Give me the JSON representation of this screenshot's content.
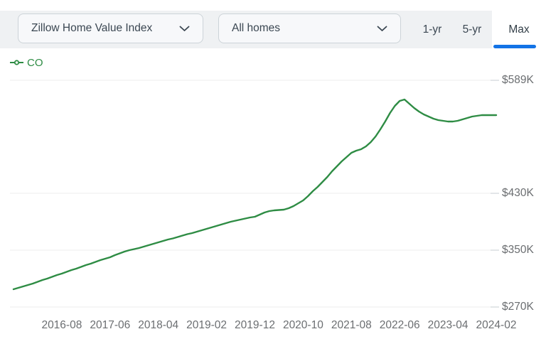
{
  "toolbar": {
    "metric_dropdown": {
      "value": "Zillow Home Value Index"
    },
    "home_type_dropdown": {
      "value": "All homes"
    },
    "ranges": [
      {
        "label": "1-yr",
        "selected": false
      },
      {
        "label": "5-yr",
        "selected": false
      },
      {
        "label": "Max",
        "selected": true
      }
    ]
  },
  "legend": {
    "series_label": "CO"
  },
  "colors": {
    "series_green": "#2e8c44",
    "accent_blue": "#1373e6"
  },
  "chart_data": {
    "type": "line",
    "title": "Zillow Home Value Index — CO — All homes — Max range",
    "legend_position": "top-left",
    "grid": "horizontal-only",
    "y_axis": {
      "side": "right",
      "tick_labels": [
        "$589K",
        "$430K",
        "$350K",
        "$270K"
      ],
      "tick_values": [
        589,
        430,
        350,
        270
      ],
      "unit": "USD thousands"
    },
    "x_axis": {
      "tick_labels": [
        "2016-08",
        "2017-06",
        "2018-04",
        "2019-02",
        "2019-12",
        "2020-10",
        "2021-08",
        "2022-06",
        "2023-04",
        "2024-02"
      ]
    },
    "series": [
      {
        "name": "CO",
        "color": "#2e8c44",
        "months": [
          "2015-10",
          "2015-11",
          "2015-12",
          "2016-01",
          "2016-02",
          "2016-03",
          "2016-04",
          "2016-05",
          "2016-06",
          "2016-07",
          "2016-08",
          "2016-09",
          "2016-10",
          "2016-11",
          "2016-12",
          "2017-01",
          "2017-02",
          "2017-03",
          "2017-04",
          "2017-05",
          "2017-06",
          "2017-07",
          "2017-08",
          "2017-09",
          "2017-10",
          "2017-11",
          "2017-12",
          "2018-01",
          "2018-02",
          "2018-03",
          "2018-04",
          "2018-05",
          "2018-06",
          "2018-07",
          "2018-08",
          "2018-09",
          "2018-10",
          "2018-11",
          "2018-12",
          "2019-01",
          "2019-02",
          "2019-03",
          "2019-04",
          "2019-05",
          "2019-06",
          "2019-07",
          "2019-08",
          "2019-09",
          "2019-10",
          "2019-11",
          "2019-12",
          "2020-01",
          "2020-02",
          "2020-03",
          "2020-04",
          "2020-05",
          "2020-06",
          "2020-07",
          "2020-08",
          "2020-09",
          "2020-10",
          "2020-11",
          "2020-12",
          "2021-01",
          "2021-02",
          "2021-03",
          "2021-04",
          "2021-05",
          "2021-06",
          "2021-07",
          "2021-08",
          "2021-09",
          "2021-10",
          "2021-11",
          "2021-12",
          "2022-01",
          "2022-02",
          "2022-03",
          "2022-04",
          "2022-05",
          "2022-06",
          "2022-07",
          "2022-08",
          "2022-09",
          "2022-10",
          "2022-11",
          "2022-12",
          "2023-01",
          "2023-02",
          "2023-03",
          "2023-04",
          "2023-05",
          "2023-06",
          "2023-07",
          "2023-08",
          "2023-09",
          "2023-10",
          "2023-11",
          "2023-12",
          "2024-01",
          "2024-02"
        ],
        "values_usd_k": [
          295,
          297,
          299,
          301,
          303,
          305.5,
          308,
          310,
          312.5,
          315,
          317,
          319.5,
          322,
          324,
          326.5,
          329,
          331,
          333.5,
          336,
          338,
          340,
          343,
          345.5,
          348,
          350,
          351.5,
          353,
          355,
          357,
          359,
          361,
          363,
          365,
          366.5,
          368.5,
          370.5,
          372.5,
          374,
          376,
          378,
          380,
          382,
          384,
          386,
          388,
          390,
          391.5,
          393,
          394.5,
          396,
          397,
          400,
          403,
          405,
          406,
          406.5,
          407,
          409,
          412,
          416,
          420,
          426,
          433,
          439,
          446,
          453,
          461,
          468,
          475,
          481,
          487,
          490,
          492,
          496,
          502,
          510,
          520,
          531,
          543,
          553,
          560,
          562,
          556,
          550,
          545,
          541,
          538,
          535,
          533,
          532,
          531,
          531,
          532,
          534,
          536,
          538,
          539,
          540,
          540,
          540,
          540
        ]
      }
    ]
  }
}
